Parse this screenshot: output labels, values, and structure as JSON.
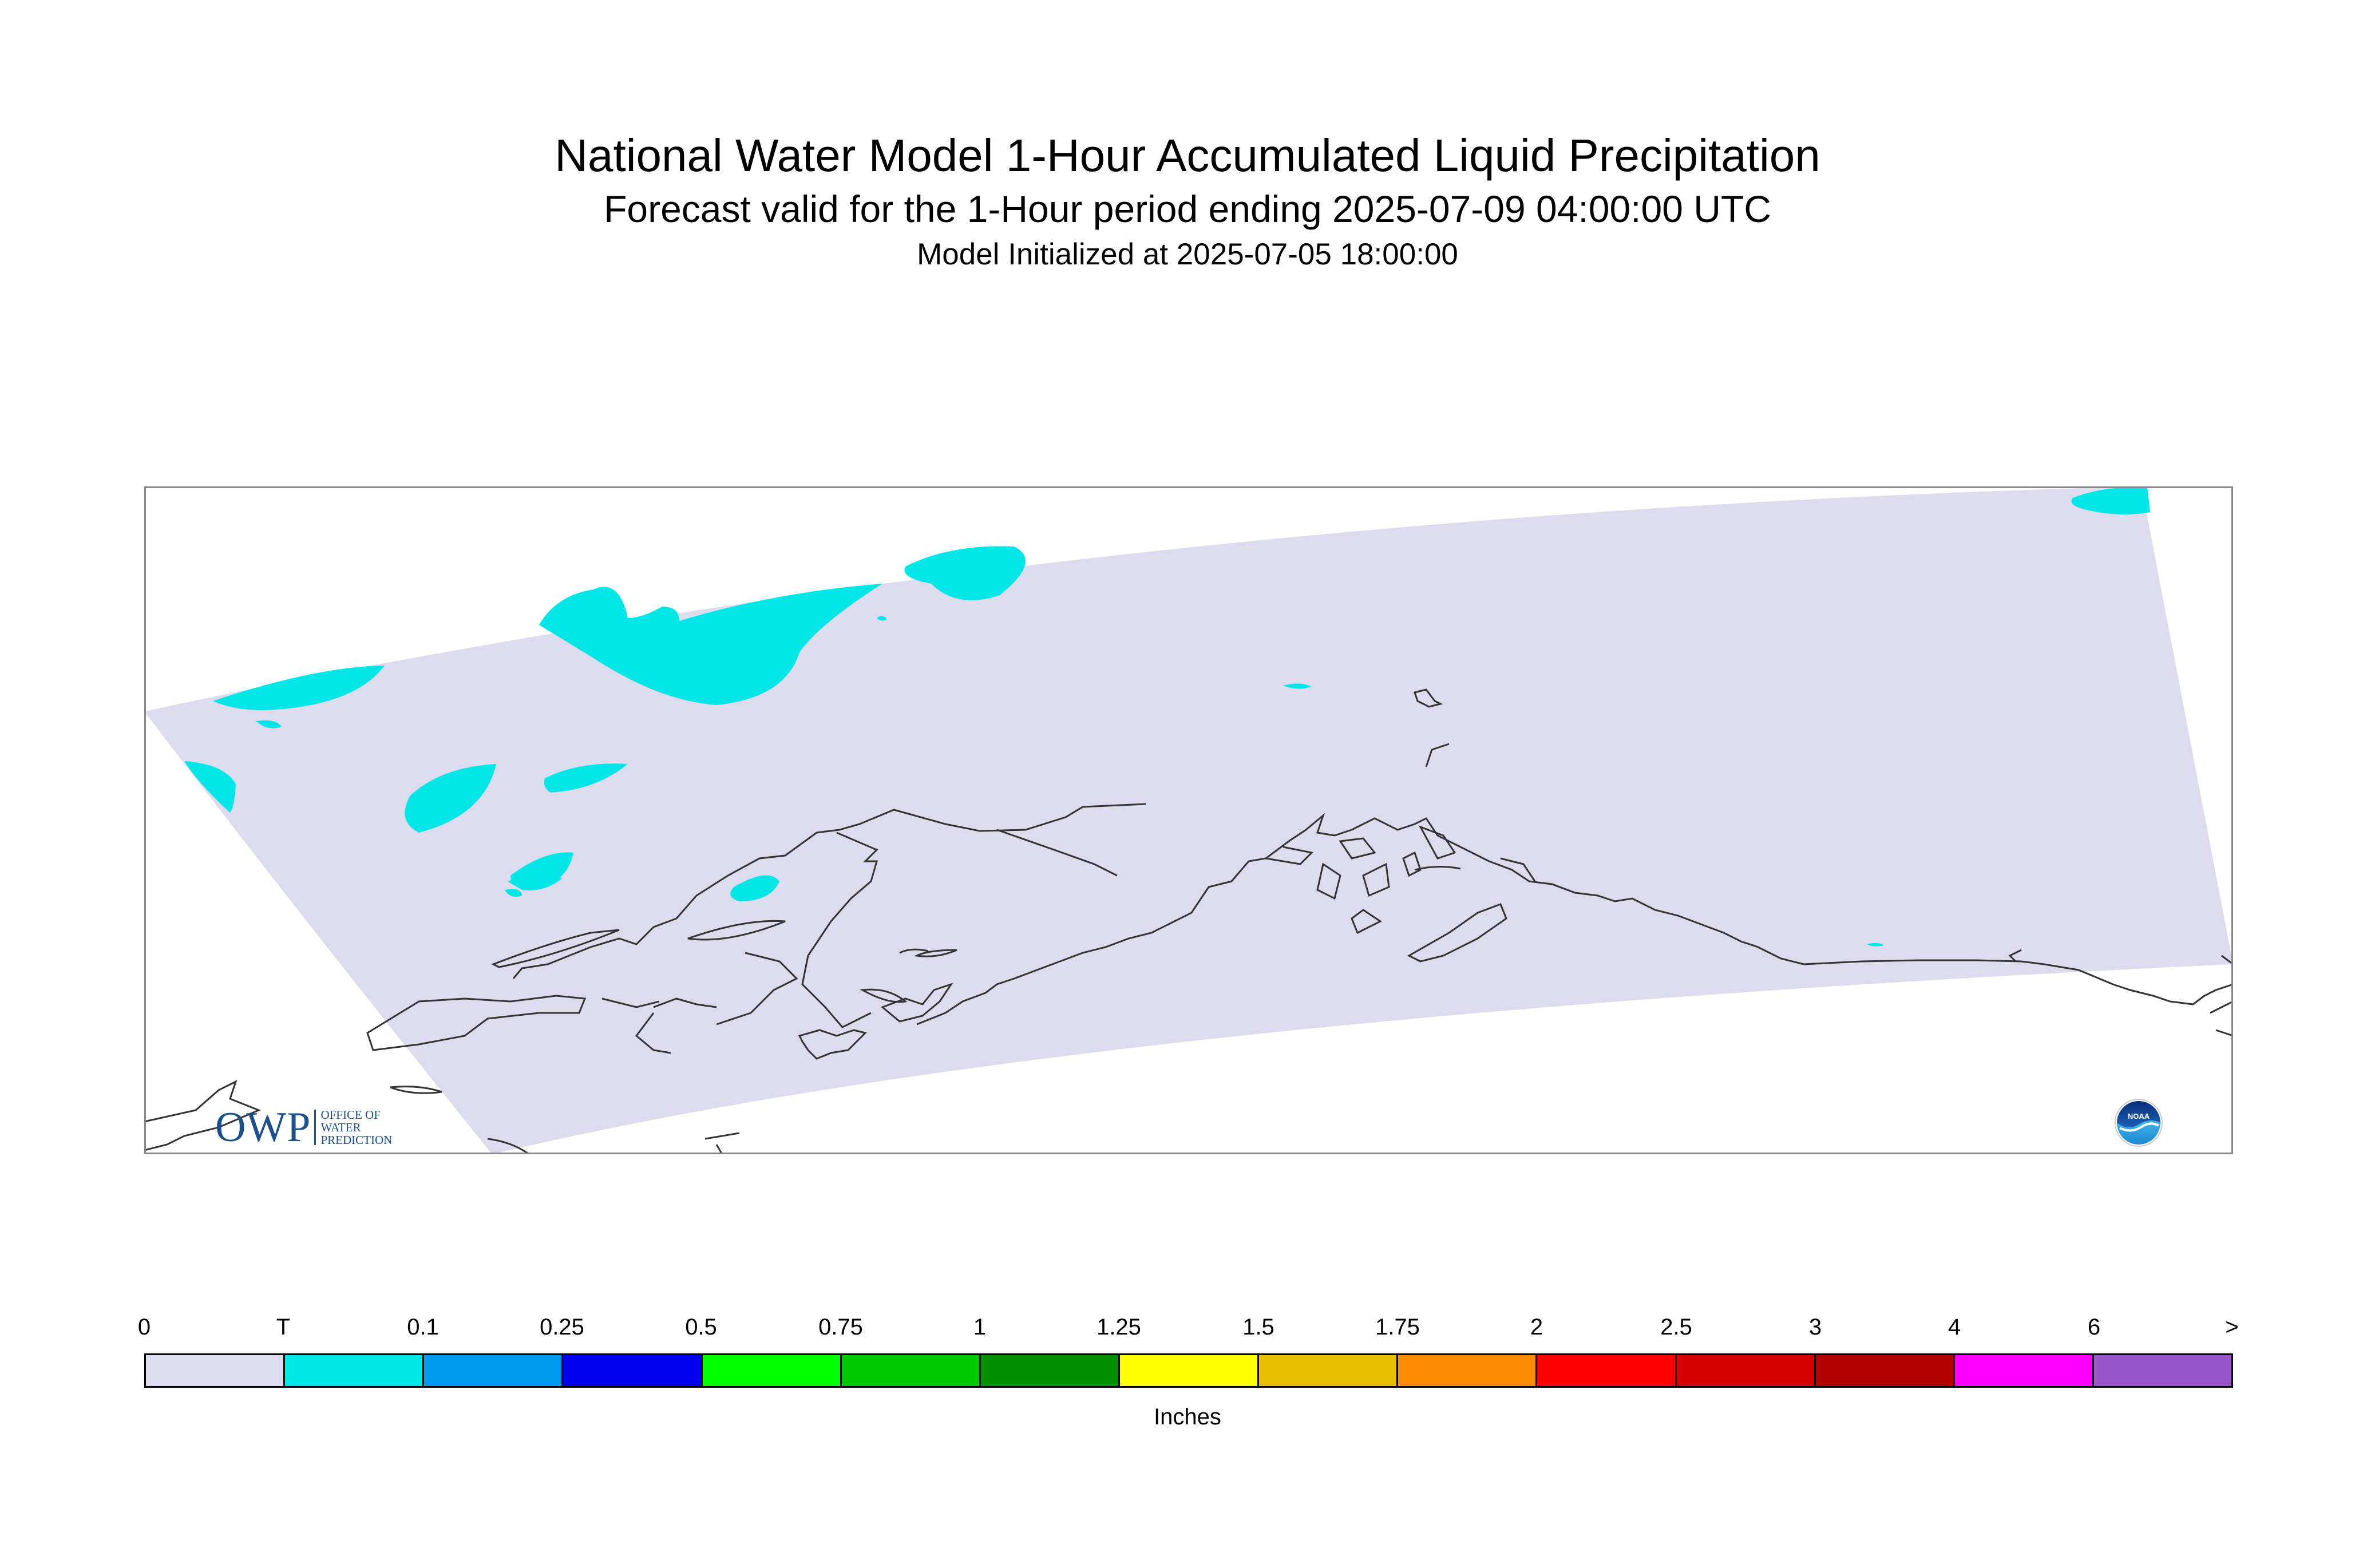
{
  "header": {
    "title": "National Water Model 1-Hour Accumulated Liquid Precipitation",
    "subtitle": "Forecast valid for the 1-Hour period ending 2025-07-09 04:00:00 UTC",
    "init_line": "Model Initialized at 2025-07-05 18:00:00"
  },
  "map": {
    "domain_fill_color": "#dcdcee",
    "precip_trace_color": "#00e6e6",
    "coastline_color": "#333333",
    "frame_color": "#888888"
  },
  "logos": {
    "owp_mark": "OWP",
    "owp_lines": [
      "OFFICE OF",
      "WATER",
      "PREDICTION"
    ],
    "noaa_text": "NOAA"
  },
  "colorbar": {
    "units": "Inches",
    "labels": [
      "0",
      "T",
      "0.1",
      "0.25",
      "0.5",
      "0.75",
      "1",
      "1.25",
      "1.5",
      "1.75",
      "2",
      "2.5",
      "3",
      "4",
      "6",
      ">"
    ],
    "colors": [
      "#dcdcee",
      "#00e6e6",
      "#009aef",
      "#0000f0",
      "#00ff00",
      "#00c800",
      "#009000",
      "#ffff00",
      "#e6c000",
      "#ff8c00",
      "#ff0000",
      "#d70000",
      "#b40000",
      "#ff00ff",
      "#9955c8"
    ]
  }
}
